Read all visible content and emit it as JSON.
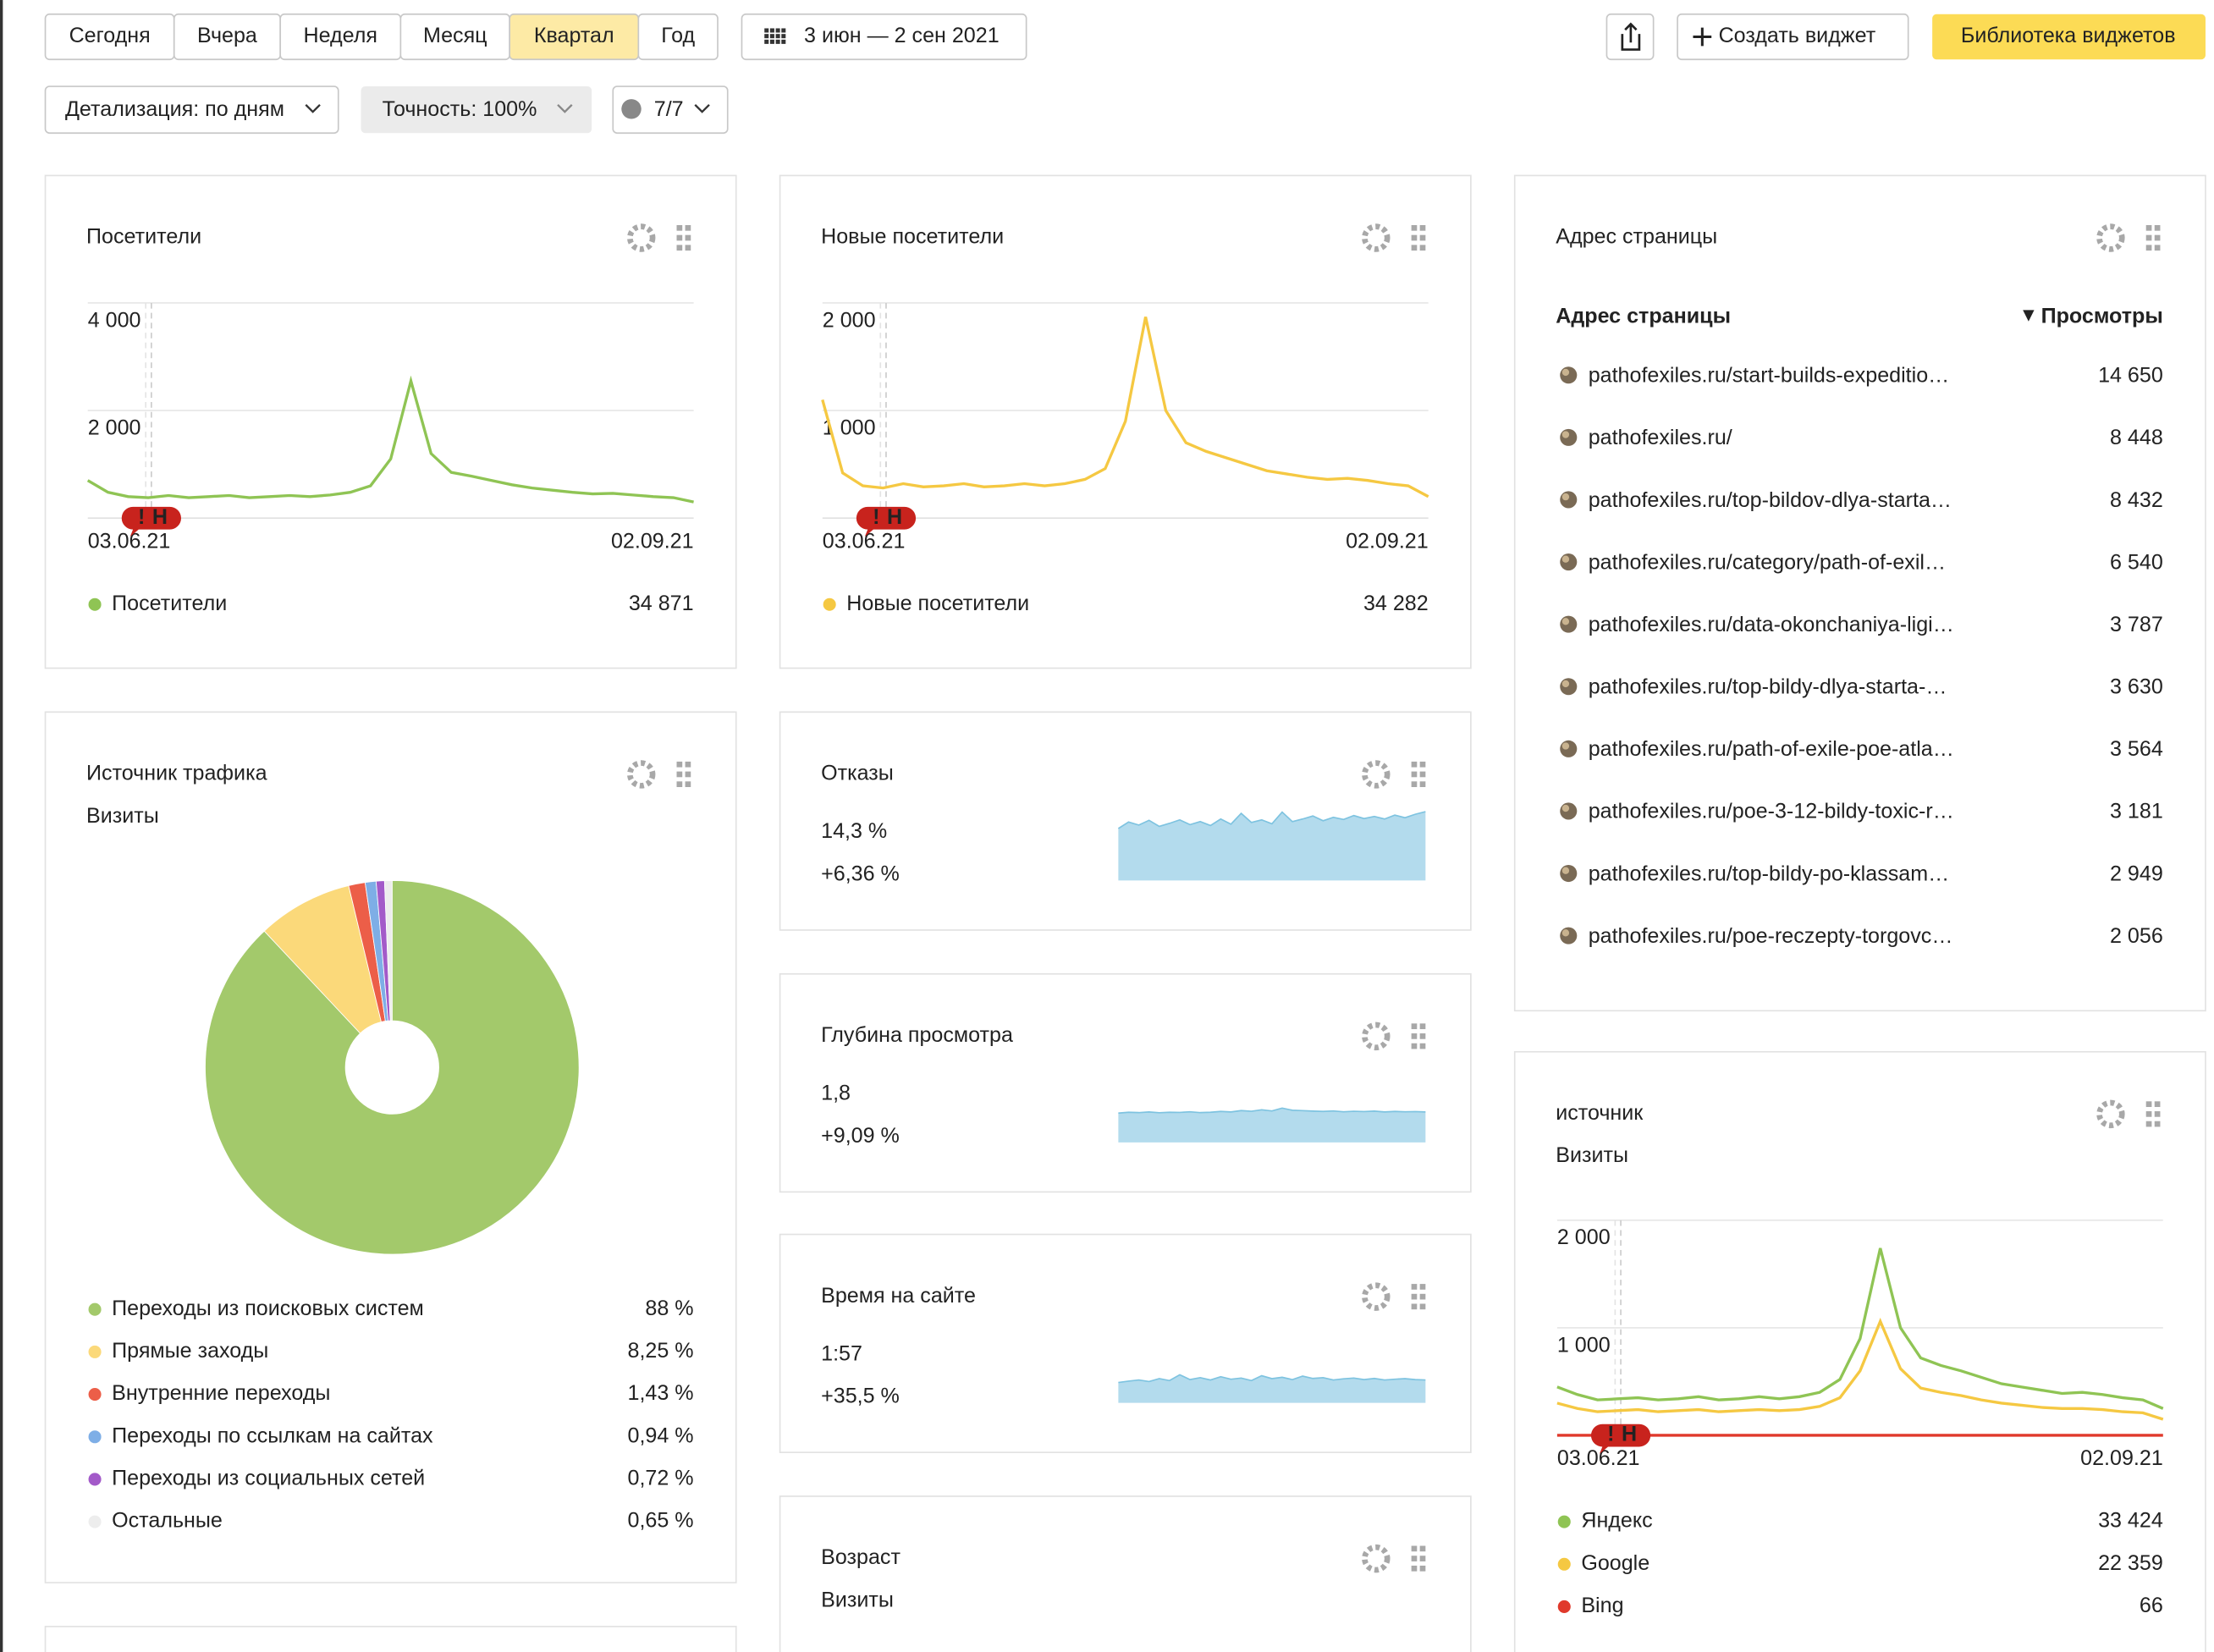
{
  "toolbar": {
    "periods": [
      "Сегодня",
      "Вчера",
      "Неделя",
      "Месяц",
      "Квартал",
      "Год"
    ],
    "active_period": 4,
    "date_range": "3 июн — 2 сен 2021",
    "create_widget": "Создать виджет",
    "library": "Библиотека виджетов",
    "detail": "Детализация: по дням",
    "accuracy": "Точность: 100%",
    "segments": "7/7"
  },
  "event_marker": [
    "!",
    "Н"
  ],
  "chart_data": [
    {
      "type": "line",
      "title": "Посетители",
      "categories": [
        "03.06.21",
        null,
        null,
        null,
        null,
        null,
        null,
        null,
        null,
        null,
        null,
        null,
        null,
        null,
        null,
        null,
        null,
        null,
        null,
        null,
        null,
        null,
        null,
        null,
        null,
        null,
        null,
        null,
        null,
        null,
        "02.09.21"
      ],
      "series": [
        {
          "name": "Посетители",
          "color": "#8fc454",
          "total": 34871,
          "total_label": "34 871",
          "values": [
            700,
            480,
            400,
            380,
            420,
            380,
            400,
            420,
            380,
            400,
            420,
            400,
            430,
            480,
            600,
            1100,
            2550,
            1200,
            850,
            780,
            700,
            620,
            560,
            520,
            480,
            450,
            460,
            430,
            400,
            380,
            300
          ]
        }
      ],
      "ylim": [
        0,
        4000
      ],
      "yticks": [
        {
          "value": 2000,
          "label": "2 000"
        },
        {
          "value": 4000,
          "label": "4 000"
        }
      ],
      "grid": true
    },
    {
      "type": "line",
      "title": "Новые посетители",
      "categories": [
        "03.06.21",
        null,
        null,
        null,
        null,
        null,
        null,
        null,
        null,
        null,
        null,
        null,
        null,
        null,
        null,
        null,
        null,
        null,
        null,
        null,
        null,
        null,
        null,
        null,
        null,
        null,
        null,
        null,
        null,
        null,
        "02.09.21"
      ],
      "series": [
        {
          "name": "Новые посетители",
          "color": "#f5c842",
          "total": 34282,
          "total_label": "34 282",
          "values": [
            1100,
            420,
            300,
            280,
            320,
            290,
            300,
            320,
            290,
            300,
            320,
            300,
            320,
            360,
            460,
            900,
            1870,
            1000,
            700,
            620,
            560,
            500,
            440,
            410,
            380,
            360,
            370,
            350,
            320,
            300,
            200
          ]
        }
      ],
      "ylim": [
        0,
        2000
      ],
      "yticks": [
        {
          "value": 1000,
          "label": "1 000"
        },
        {
          "value": 2000,
          "label": "2 000"
        }
      ],
      "grid": true
    },
    {
      "type": "pie",
      "title": "Источник трафика",
      "subtitle": "Визиты",
      "categories": [
        "Переходы из поисковых систем",
        "Прямые заходы",
        "Внутренние переходы",
        "Переходы по ссылкам на сайтах",
        "Переходы из социальных сетей",
        "Остальные"
      ],
      "values": [
        88,
        8.25,
        1.43,
        0.94,
        0.72,
        0.65
      ],
      "value_labels": [
        "88 %",
        "8,25 %",
        "1,43 %",
        "0,94 %",
        "0,72 %",
        "0,65 %"
      ],
      "colors": [
        "#a3c96b",
        "#fbd97a",
        "#ec5e48",
        "#7eaee6",
        "#a35ac9",
        "#ededed"
      ]
    },
    {
      "type": "sparkline",
      "title": "Отказы",
      "value_text": "14,3 %",
      "change_text": "+6,36 %",
      "change_color": "#e0392b",
      "color": "#b3dbed",
      "line_color": "#7ec3e0",
      "values": [
        12,
        13.5,
        12.8,
        13.9,
        12.5,
        13.2,
        14,
        12.9,
        13.6,
        12.7,
        14.2,
        13,
        15.5,
        13.4,
        14,
        13.1,
        15.8,
        13.6,
        14.2,
        14.9,
        13.8,
        14.6,
        14.1,
        15,
        14.3,
        14.8,
        14.2,
        15.1,
        14.5,
        15.3,
        15.9
      ],
      "ylim": [
        0,
        17
      ]
    },
    {
      "type": "sparkline",
      "title": "Глубина просмотра",
      "value_text": "1,8",
      "change_text": "+9,09 %",
      "change_color": "#3aa33a",
      "color": "#b3dbed",
      "line_color": "#7ec3e0",
      "values": [
        1.75,
        1.8,
        1.78,
        1.82,
        1.77,
        1.8,
        1.79,
        1.83,
        1.78,
        1.8,
        1.85,
        1.82,
        1.9,
        1.86,
        1.95,
        1.88,
        2.05,
        1.92,
        1.9,
        1.87,
        1.85,
        1.88,
        1.83,
        1.86,
        1.84,
        1.87,
        1.82,
        1.85,
        1.83,
        1.84,
        1.82
      ],
      "ylim": [
        0,
        4.4
      ]
    },
    {
      "type": "sparkline",
      "title": "Время на сайте",
      "value_text": "1:57",
      "change_text": "+35,5 %",
      "change_color": "#3aa33a",
      "color": "#b3dbed",
      "line_color": "#7ec3e0",
      "values": [
        105,
        112,
        118,
        110,
        125,
        115,
        145,
        120,
        130,
        118,
        135,
        122,
        128,
        115,
        140,
        125,
        132,
        120,
        138,
        126,
        130,
        118,
        124,
        128,
        120,
        126,
        118,
        122,
        125,
        120,
        118
      ],
      "ylim": [
        0,
        380
      ]
    },
    {
      "type": "line",
      "title": "источник",
      "subtitle": "Визиты",
      "categories": [
        "03.06.21",
        null,
        null,
        null,
        null,
        null,
        null,
        null,
        null,
        null,
        null,
        null,
        null,
        null,
        null,
        null,
        null,
        null,
        null,
        null,
        null,
        null,
        null,
        null,
        null,
        null,
        null,
        null,
        null,
        null,
        "02.09.21"
      ],
      "series": [
        {
          "name": "Яндекс",
          "color": "#8fc454",
          "total": 33424,
          "total_label": "33 424",
          "values": [
            450,
            380,
            330,
            340,
            350,
            330,
            340,
            360,
            330,
            340,
            360,
            340,
            360,
            400,
            520,
            900,
            1740,
            1000,
            720,
            650,
            600,
            540,
            480,
            450,
            420,
            390,
            400,
            380,
            350,
            330,
            250
          ]
        },
        {
          "name": "Google",
          "color": "#f5c842",
          "total": 22359,
          "total_label": "22 359",
          "values": [
            300,
            250,
            220,
            230,
            240,
            220,
            230,
            240,
            220,
            230,
            240,
            230,
            240,
            270,
            350,
            600,
            1060,
            620,
            440,
            400,
            370,
            330,
            300,
            280,
            260,
            250,
            250,
            240,
            220,
            210,
            150
          ]
        },
        {
          "name": "Bing",
          "color": "#e0392b",
          "total": 66,
          "values": [
            1,
            1,
            1,
            1,
            1,
            1,
            1,
            1,
            1,
            1,
            1,
            1,
            1,
            1,
            1,
            1,
            1,
            1,
            1,
            1,
            1,
            1,
            1,
            1,
            1,
            1,
            1,
            1,
            1,
            1,
            1
          ]
        }
      ],
      "ylim": [
        0,
        2000
      ],
      "yticks": [
        {
          "value": 1000,
          "label": "1 000"
        },
        {
          "value": 2000,
          "label": "2 000"
        }
      ],
      "grid": true
    }
  ],
  "page_table": {
    "title": "Адрес страницы",
    "columns": [
      "Адрес страницы",
      "Просмотры"
    ],
    "rows": [
      [
        "pathofexiles.ru/start-builds-expeditio…",
        "14 650"
      ],
      [
        "pathofexiles.ru/",
        "8 448"
      ],
      [
        "pathofexiles.ru/top-bildov-dlya-starta…",
        "8 432"
      ],
      [
        "pathofexiles.ru/category/path-of-exil…",
        "6 540"
      ],
      [
        "pathofexiles.ru/data-okonchaniya-ligi…",
        "3 787"
      ],
      [
        "pathofexiles.ru/top-bildy-dlya-starta-…",
        "3 630"
      ],
      [
        "pathofexiles.ru/path-of-exile-poe-atla…",
        "3 564"
      ],
      [
        "pathofexiles.ru/poe-3-12-bildy-toxic-r…",
        "3 181"
      ],
      [
        "pathofexiles.ru/top-bildy-po-klassam…",
        "2 949"
      ],
      [
        "pathofexiles.ru/poe-reczepty-torgovc…",
        "2 056"
      ]
    ]
  },
  "age_widget": {
    "title": "Возраст",
    "subtitle": "Визиты"
  }
}
